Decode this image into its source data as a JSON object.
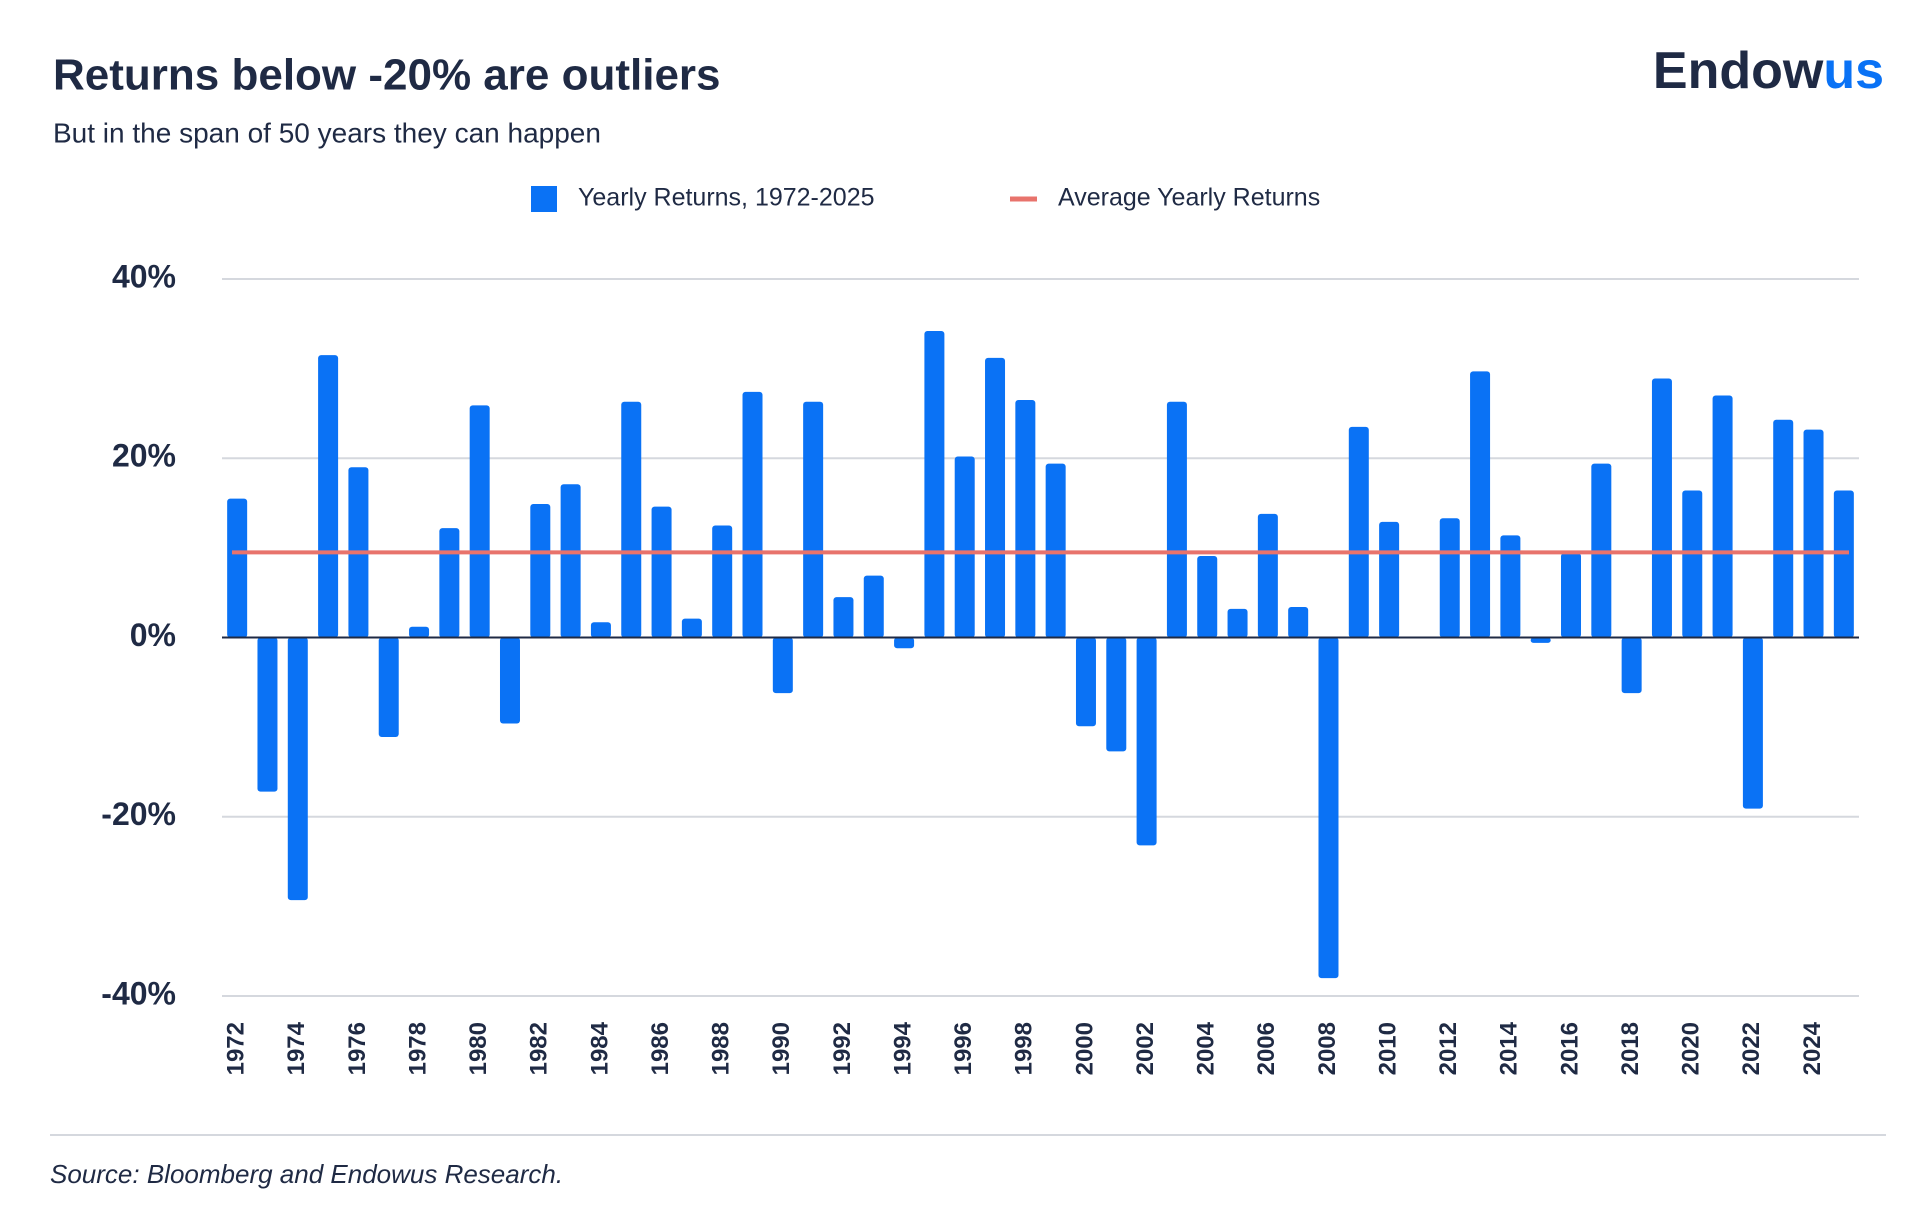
{
  "chart_data": {
    "type": "bar",
    "title": "Returns below -20% are outliers",
    "subtitle": "But in the span of 50 years they can happen",
    "logo": {
      "main": "Endow",
      "accent": "us"
    },
    "source": "Source: Bloomberg and Endowus Research.",
    "categories": [
      "1972",
      null,
      "1974",
      null,
      "1976",
      null,
      "1978",
      null,
      "1980",
      null,
      "1982",
      null,
      "1984",
      null,
      "1986",
      null,
      "1988",
      null,
      "1990",
      null,
      "1992",
      null,
      "1994",
      null,
      "1996",
      null,
      "1998",
      null,
      "2000",
      null,
      "2002",
      null,
      "2004",
      null,
      "2006",
      null,
      "2008",
      null,
      "2010",
      null,
      "2012",
      null,
      "2014",
      null,
      "2016",
      null,
      "2018",
      null,
      "2020",
      null,
      "2022",
      null,
      "2024",
      null
    ],
    "series": [
      {
        "name": "Yearly Returns, 1972-2025",
        "color": "#0a72f5",
        "values": [
          15.5,
          -17.2,
          -29.3,
          31.5,
          19.0,
          -11.1,
          1.2,
          12.2,
          25.9,
          -9.6,
          14.9,
          17.1,
          1.7,
          26.3,
          14.6,
          2.1,
          12.5,
          27.4,
          -6.2,
          26.3,
          4.5,
          6.9,
          -1.2,
          34.2,
          20.2,
          31.2,
          26.5,
          19.4,
          -9.9,
          -12.7,
          -23.2,
          26.3,
          9.1,
          3.2,
          13.8,
          3.4,
          -38.0,
          23.5,
          12.9,
          0,
          13.3,
          29.7,
          11.4,
          -0.6,
          9.4,
          19.4,
          -6.2,
          28.9,
          16.4,
          27.0,
          -19.1,
          24.3,
          23.2,
          16.4
        ]
      }
    ],
    "average": {
      "name": "Average Yearly Returns",
      "value": 9.5,
      "color": "#e8736c"
    },
    "ylim": [
      -40,
      40
    ],
    "yticks": [
      {
        "value": -40,
        "label": "-40%"
      },
      {
        "value": -20,
        "label": "-20%"
      },
      {
        "value": 0,
        "label": "0%"
      },
      {
        "value": 20,
        "label": "20%"
      },
      {
        "value": 40,
        "label": "40%"
      }
    ],
    "grid": true
  }
}
